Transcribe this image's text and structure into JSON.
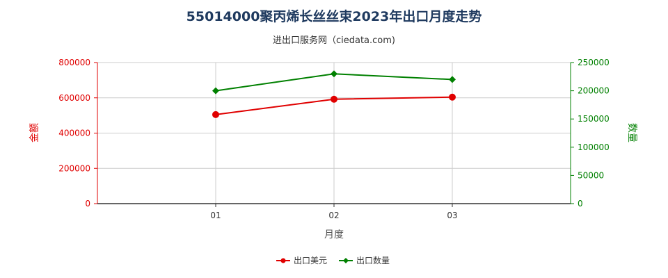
{
  "title": "55014000聚丙烯长丝丝束2023年出口月度走势",
  "subtitle": "进出口服务网（ciedata.com)",
  "colors": {
    "left": "#e00000",
    "right": "#008000",
    "grid": "#cccccc",
    "axis": "#333333"
  },
  "chart_data": {
    "type": "line",
    "categories": [
      "01",
      "02",
      "03"
    ],
    "xlabel": "月度",
    "ylabel_left": "金额",
    "ylabel_right": "数量",
    "ylim_left": [
      0,
      800000
    ],
    "ylim_right": [
      0,
      250000
    ],
    "yticks_left": [
      "0",
      "200000",
      "400000",
      "600000",
      "800000"
    ],
    "yticks_right": [
      "0",
      "50000",
      "100000",
      "150000",
      "200000",
      "250000"
    ],
    "grid": true,
    "legend_position": "bottom",
    "series": [
      {
        "name": "出口美元",
        "axis": "left",
        "color": "#e00000",
        "values": [
          505000,
          592000,
          604000
        ]
      },
      {
        "name": "出口数量",
        "axis": "right",
        "color": "#008000",
        "values": [
          200000,
          230000,
          220000
        ]
      }
    ]
  }
}
